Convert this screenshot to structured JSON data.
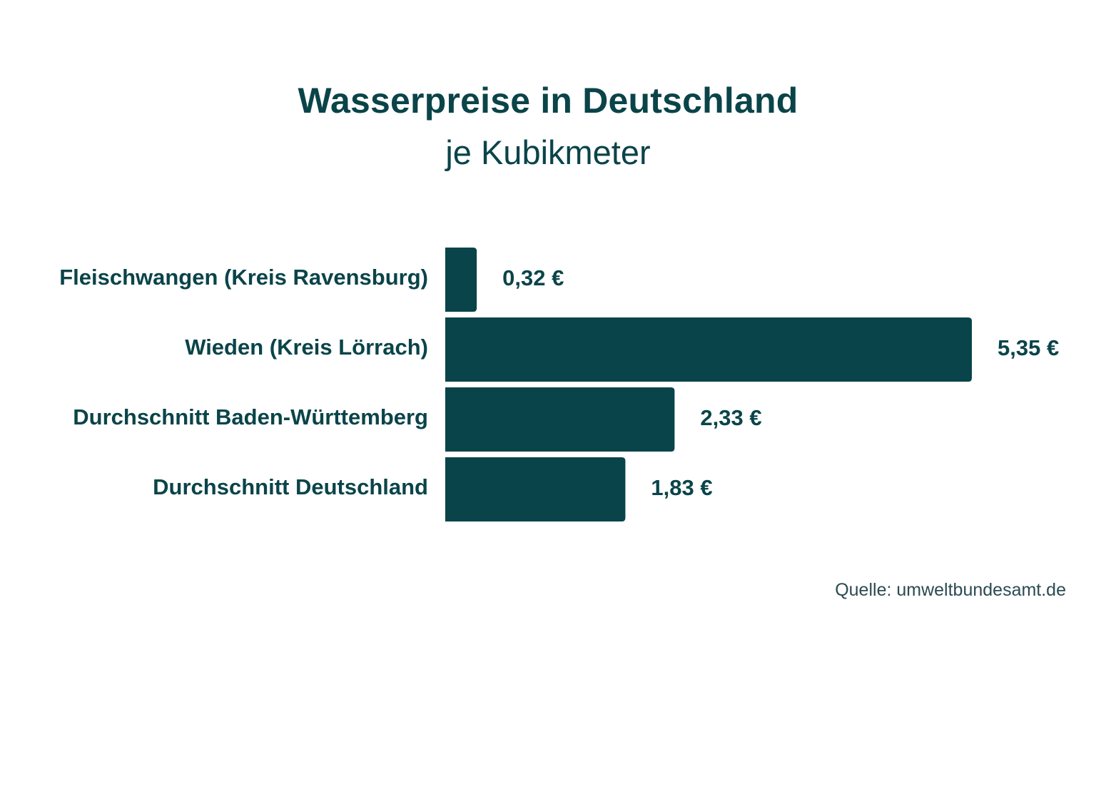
{
  "chart_data": {
    "type": "bar",
    "orientation": "horizontal",
    "title": "Wasserpreise in Deutschland",
    "subtitle": "je Kubikmeter",
    "categories": [
      "Fleischwangen (Kreis Ravensburg)",
      "Wieden (Kreis Lörrach)",
      "Durchschnitt Baden-Württemberg",
      "Durchschnitt Deutschland"
    ],
    "values": [
      0.32,
      5.35,
      2.33,
      1.83
    ],
    "value_labels": [
      "0,32 €",
      "5,35 €",
      "2,33 €",
      "1,83 €"
    ],
    "unit": "€",
    "xlim": [
      0,
      5.35
    ],
    "grid": false,
    "bar_color": "#08444a",
    "text_color": "#0a4449",
    "source": "Quelle: umweltbundesamt.de"
  }
}
